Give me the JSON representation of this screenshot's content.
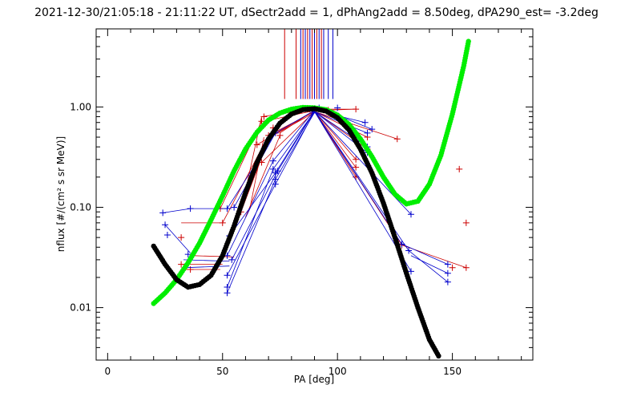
{
  "chart_data": {
    "type": "scatter",
    "title": "2021-12-30/21:05:18 - 21:11:22 UT, dSectr2add = 1, dPhAng2add = 8.50deg, dPA290_est=  -3.2deg",
    "xlabel": "PA [deg]",
    "ylabel": "nflux [#/(cm² s sr MeV)]",
    "xlim": [
      -5,
      185
    ],
    "ylim": [
      0.003,
      6.0
    ],
    "yscale": "log",
    "x_ticks": [
      0,
      50,
      100,
      150
    ],
    "x_tick_labels": [
      "0",
      "50",
      "100",
      "150"
    ],
    "y_ticks": [
      0.01,
      0.1,
      1.0
    ],
    "y_tick_labels": [
      "0.01",
      "0.10",
      "1.00"
    ],
    "grid": false,
    "colors": {
      "red": "#cc0000",
      "blue": "#0000cc",
      "green": "#00ee00",
      "black": "#000000"
    },
    "reference_lines": {
      "y_bottom": 1.2,
      "y_top": 6.0,
      "red_x": [
        77,
        82,
        85,
        87,
        89,
        91,
        93
      ],
      "blue_x": [
        84,
        86,
        88,
        90,
        92,
        94,
        96,
        98
      ]
    },
    "series": [
      {
        "color": "red",
        "points": [
          [
            32,
            0.027
          ],
          [
            32,
            0.05
          ],
          [
            36,
            0.024
          ],
          [
            48,
            0.027
          ],
          [
            49,
            0.097
          ],
          [
            50,
            0.07
          ],
          [
            58,
            0.09
          ],
          [
            65,
            0.42
          ],
          [
            67,
            0.72
          ],
          [
            67,
            0.28
          ],
          [
            68,
            0.8
          ],
          [
            70,
            0.52
          ],
          [
            72,
            0.62
          ],
          [
            75,
            0.52
          ],
          [
            88,
            0.95
          ],
          [
            89,
            0.91
          ],
          [
            94,
            0.93
          ],
          [
            96,
            0.93
          ],
          [
            108,
            0.95
          ],
          [
            108,
            0.3
          ],
          [
            108,
            0.2
          ],
          [
            108,
            0.25
          ],
          [
            113,
            0.38
          ],
          [
            113,
            0.5
          ],
          [
            126,
            0.48
          ],
          [
            128,
            0.042
          ],
          [
            150,
            0.025
          ],
          [
            153,
            0.24
          ],
          [
            156,
            0.025
          ],
          [
            156,
            0.07
          ]
        ],
        "lines": [
          [
            [
              32,
              0.07
            ],
            [
              49,
              0.07
            ]
          ],
          [
            [
              32,
              0.027
            ],
            [
              50,
              0.027
            ]
          ],
          [
            [
              32,
              0.024
            ],
            [
              49,
              0.024
            ]
          ],
          [
            [
              36,
              0.033
            ],
            [
              55,
              0.032
            ]
          ],
          [
            [
              49,
              0.097
            ],
            [
              67,
              0.72
            ]
          ],
          [
            [
              50,
              0.07
            ],
            [
              70,
              0.52
            ]
          ],
          [
            [
              58,
              0.09
            ],
            [
              67,
              0.8
            ]
          ],
          [
            [
              58,
              0.09
            ],
            [
              72,
              0.62
            ]
          ],
          [
            [
              60,
              0.08
            ],
            [
              75,
              0.52
            ]
          ],
          [
            [
              62,
              0.1
            ],
            [
              68,
              0.5
            ]
          ],
          [
            [
              67,
              0.8
            ],
            [
              89,
              0.95
            ]
          ],
          [
            [
              68,
              0.72
            ],
            [
              88,
              0.9
            ]
          ],
          [
            [
              70,
              0.52
            ],
            [
              90,
              0.9
            ]
          ],
          [
            [
              72,
              0.52
            ],
            [
              90,
              0.88
            ]
          ],
          [
            [
              75,
              0.55
            ],
            [
              90,
              0.93
            ]
          ],
          [
            [
              65,
              0.42
            ],
            [
              90,
              0.92
            ]
          ],
          [
            [
              67,
              0.28
            ],
            [
              90,
              0.9
            ]
          ],
          [
            [
              90,
              0.92
            ],
            [
              108,
              0.95
            ]
          ],
          [
            [
              90,
              0.9
            ],
            [
              113,
              0.5
            ]
          ],
          [
            [
              90,
              0.9
            ],
            [
              126,
              0.48
            ]
          ],
          [
            [
              90,
              0.9
            ],
            [
              108,
              0.3
            ]
          ],
          [
            [
              90,
              0.9
            ],
            [
              108,
              0.2
            ]
          ],
          [
            [
              90,
              0.9
            ],
            [
              108,
              0.25
            ]
          ],
          [
            [
              90,
              0.9
            ],
            [
              113,
              0.38
            ]
          ],
          [
            [
              90,
              0.9
            ],
            [
              128,
              0.042
            ]
          ],
          [
            [
              128,
              0.042
            ],
            [
              156,
              0.025
            ]
          ],
          [
            [
              96,
              0.95
            ],
            [
              108,
              0.95
            ]
          ]
        ]
      },
      {
        "color": "blue",
        "points": [
          [
            24,
            0.088
          ],
          [
            25,
            0.067
          ],
          [
            26,
            0.053
          ],
          [
            35,
            0.034
          ],
          [
            36,
            0.097
          ],
          [
            52,
            0.097
          ],
          [
            52,
            0.033
          ],
          [
            52,
            0.016
          ],
          [
            52,
            0.014
          ],
          [
            52,
            0.021
          ],
          [
            53,
            0.052
          ],
          [
            54,
            0.03
          ],
          [
            55,
            0.1
          ],
          [
            72,
            0.24
          ],
          [
            72,
            0.29
          ],
          [
            73,
            0.19
          ],
          [
            73,
            0.22
          ],
          [
            73,
            0.17
          ],
          [
            74,
            0.23
          ],
          [
            73,
            0.55
          ],
          [
            90,
            0.93
          ],
          [
            92,
            0.98
          ],
          [
            100,
            0.98
          ],
          [
            112,
            0.7
          ],
          [
            113,
            0.55
          ],
          [
            113,
            0.4
          ],
          [
            113,
            0.35
          ],
          [
            115,
            0.6
          ],
          [
            128,
            0.043
          ],
          [
            131,
            0.037
          ],
          [
            132,
            0.085
          ],
          [
            132,
            0.023
          ],
          [
            148,
            0.027
          ],
          [
            148,
            0.018
          ],
          [
            148,
            0.022
          ]
        ],
        "lines": [
          [
            [
              24,
              0.088
            ],
            [
              36,
              0.097
            ]
          ],
          [
            [
              36,
              0.097
            ],
            [
              54,
              0.097
            ]
          ],
          [
            [
              25,
              0.067
            ],
            [
              36,
              0.035
            ]
          ],
          [
            [
              33,
              0.03
            ],
            [
              53,
              0.029
            ]
          ],
          [
            [
              33,
              0.025
            ],
            [
              53,
              0.026
            ]
          ],
          [
            [
              52,
              0.097
            ],
            [
              73,
              0.55
            ]
          ],
          [
            [
              52,
              0.033
            ],
            [
              72,
              0.29
            ]
          ],
          [
            [
              52,
              0.016
            ],
            [
              72,
              0.24
            ]
          ],
          [
            [
              52,
              0.014
            ],
            [
              73,
              0.19
            ]
          ],
          [
            [
              52,
              0.021
            ],
            [
              73,
              0.17
            ]
          ],
          [
            [
              53,
              0.052
            ],
            [
              73,
              0.22
            ]
          ],
          [
            [
              54,
              0.03
            ],
            [
              74,
              0.23
            ]
          ],
          [
            [
              55,
              0.1
            ],
            [
              73,
              0.55
            ]
          ],
          [
            [
              72,
              0.29
            ],
            [
              90,
              0.93
            ]
          ],
          [
            [
              73,
              0.55
            ],
            [
              92,
              0.98
            ]
          ],
          [
            [
              72,
              0.24
            ],
            [
              90,
              0.9
            ]
          ],
          [
            [
              73,
              0.19
            ],
            [
              90,
              0.88
            ]
          ],
          [
            [
              73,
              0.17
            ],
            [
              90,
              0.9
            ]
          ],
          [
            [
              73,
              0.22
            ],
            [
              90,
              0.92
            ]
          ],
          [
            [
              74,
              0.23
            ],
            [
              90,
              0.91
            ]
          ],
          [
            [
              90,
              0.93
            ],
            [
              112,
              0.7
            ]
          ],
          [
            [
              92,
              0.98
            ],
            [
              115,
              0.6
            ]
          ],
          [
            [
              90,
              0.9
            ],
            [
              113,
              0.55
            ]
          ],
          [
            [
              90,
              0.9
            ],
            [
              113,
              0.4
            ]
          ],
          [
            [
              90,
              0.9
            ],
            [
              113,
              0.35
            ]
          ],
          [
            [
              90,
              0.9
            ],
            [
              128,
              0.043
            ]
          ],
          [
            [
              90,
              0.9
            ],
            [
              131,
              0.037
            ]
          ],
          [
            [
              90,
              0.9
            ],
            [
              132,
              0.085
            ]
          ],
          [
            [
              90,
              0.9
            ],
            [
              132,
              0.023
            ]
          ],
          [
            [
              128,
              0.043
            ],
            [
              148,
              0.027
            ]
          ],
          [
            [
              131,
              0.037
            ],
            [
              148,
              0.018
            ]
          ],
          [
            [
              132,
              0.033
            ],
            [
              148,
              0.022
            ]
          ]
        ]
      },
      {
        "color": "green",
        "fit": true,
        "points": [
          [
            20,
            0.011
          ],
          [
            25,
            0.014
          ],
          [
            30,
            0.019
          ],
          [
            35,
            0.028
          ],
          [
            40,
            0.044
          ],
          [
            45,
            0.075
          ],
          [
            50,
            0.13
          ],
          [
            55,
            0.23
          ],
          [
            60,
            0.38
          ],
          [
            65,
            0.56
          ],
          [
            70,
            0.74
          ],
          [
            75,
            0.87
          ],
          [
            80,
            0.95
          ],
          [
            85,
            0.99
          ],
          [
            90,
            0.98
          ],
          [
            95,
            0.94
          ],
          [
            100,
            0.83
          ],
          [
            105,
            0.67
          ],
          [
            110,
            0.48
          ],
          [
            115,
            0.32
          ],
          [
            120,
            0.2
          ],
          [
            125,
            0.135
          ],
          [
            130,
            0.108
          ],
          [
            135,
            0.115
          ],
          [
            140,
            0.17
          ],
          [
            145,
            0.33
          ],
          [
            150,
            0.85
          ],
          [
            155,
            2.6
          ],
          [
            157,
            4.5
          ]
        ]
      },
      {
        "color": "black",
        "fit": true,
        "points": [
          [
            20,
            0.041
          ],
          [
            25,
            0.027
          ],
          [
            30,
            0.019
          ],
          [
            35,
            0.016
          ],
          [
            40,
            0.017
          ],
          [
            45,
            0.021
          ],
          [
            50,
            0.033
          ],
          [
            55,
            0.065
          ],
          [
            60,
            0.14
          ],
          [
            65,
            0.28
          ],
          [
            70,
            0.48
          ],
          [
            75,
            0.69
          ],
          [
            80,
            0.85
          ],
          [
            85,
            0.94
          ],
          [
            90,
            0.96
          ],
          [
            95,
            0.91
          ],
          [
            100,
            0.78
          ],
          [
            105,
            0.59
          ],
          [
            110,
            0.38
          ],
          [
            115,
            0.22
          ],
          [
            120,
            0.11
          ],
          [
            125,
            0.05
          ],
          [
            130,
            0.022
          ],
          [
            135,
            0.01
          ],
          [
            140,
            0.0048
          ],
          [
            144,
            0.0033
          ]
        ]
      }
    ]
  }
}
